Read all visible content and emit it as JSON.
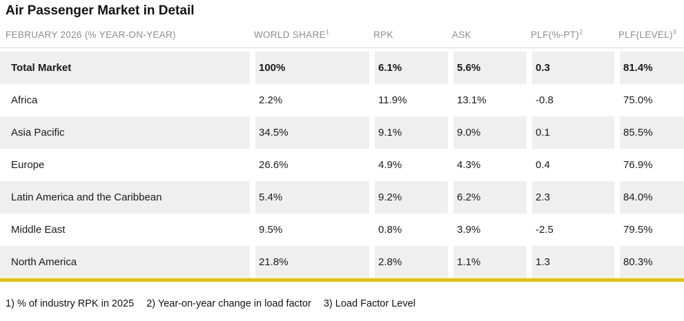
{
  "colors": {
    "accent_yellow": "#e5c100",
    "row_stripe": "#efefef",
    "header_text": "#8d8d8d",
    "text": "#1a1a1a",
    "divider": "#dcdcdc"
  },
  "chart_data": {
    "type": "table",
    "title": "Air Passenger Market in Detail",
    "columns": [
      {
        "label": "FEBRUARY 2026 (% YEAR-ON-YEAR)",
        "sup": ""
      },
      {
        "label": "WORLD SHARE",
        "sup": "1"
      },
      {
        "label": "RPK",
        "sup": ""
      },
      {
        "label": "ASK",
        "sup": ""
      },
      {
        "label": "PLF(%-PT)",
        "sup": "2"
      },
      {
        "label": "PLF(LEVEL)",
        "sup": "3"
      }
    ],
    "rows": [
      {
        "region": "Total Market",
        "world_share": "100%",
        "rpk": "6.1%",
        "ask": "5.6%",
        "plf_pct_pt": "0.3",
        "plf_level": "81.4%"
      },
      {
        "region": "Africa",
        "world_share": "2.2%",
        "rpk": "11.9%",
        "ask": "13.1%",
        "plf_pct_pt": "-0.8",
        "plf_level": "75.0%"
      },
      {
        "region": "Asia Pacific",
        "world_share": "34.5%",
        "rpk": "9.1%",
        "ask": "9.0%",
        "plf_pct_pt": "0.1",
        "plf_level": "85.5%"
      },
      {
        "region": "Europe",
        "world_share": "26.6%",
        "rpk": "4.9%",
        "ask": "4.3%",
        "plf_pct_pt": "0.4",
        "plf_level": "76.9%"
      },
      {
        "region": "Latin America and the Caribbean",
        "world_share": "5.4%",
        "rpk": "9.2%",
        "ask": "6.2%",
        "plf_pct_pt": "2.3",
        "plf_level": "84.0%"
      },
      {
        "region": "Middle East",
        "world_share": "9.5%",
        "rpk": "0.8%",
        "ask": "3.9%",
        "plf_pct_pt": "-2.5",
        "plf_level": "79.5%"
      },
      {
        "region": "North America",
        "world_share": "21.8%",
        "rpk": "2.8%",
        "ask": "1.1%",
        "plf_pct_pt": "1.3",
        "plf_level": "80.3%"
      }
    ],
    "footnotes": [
      "1) % of industry RPK in 2025",
      "2) Year-on-year change in load factor",
      "3) Load Factor Level"
    ]
  }
}
